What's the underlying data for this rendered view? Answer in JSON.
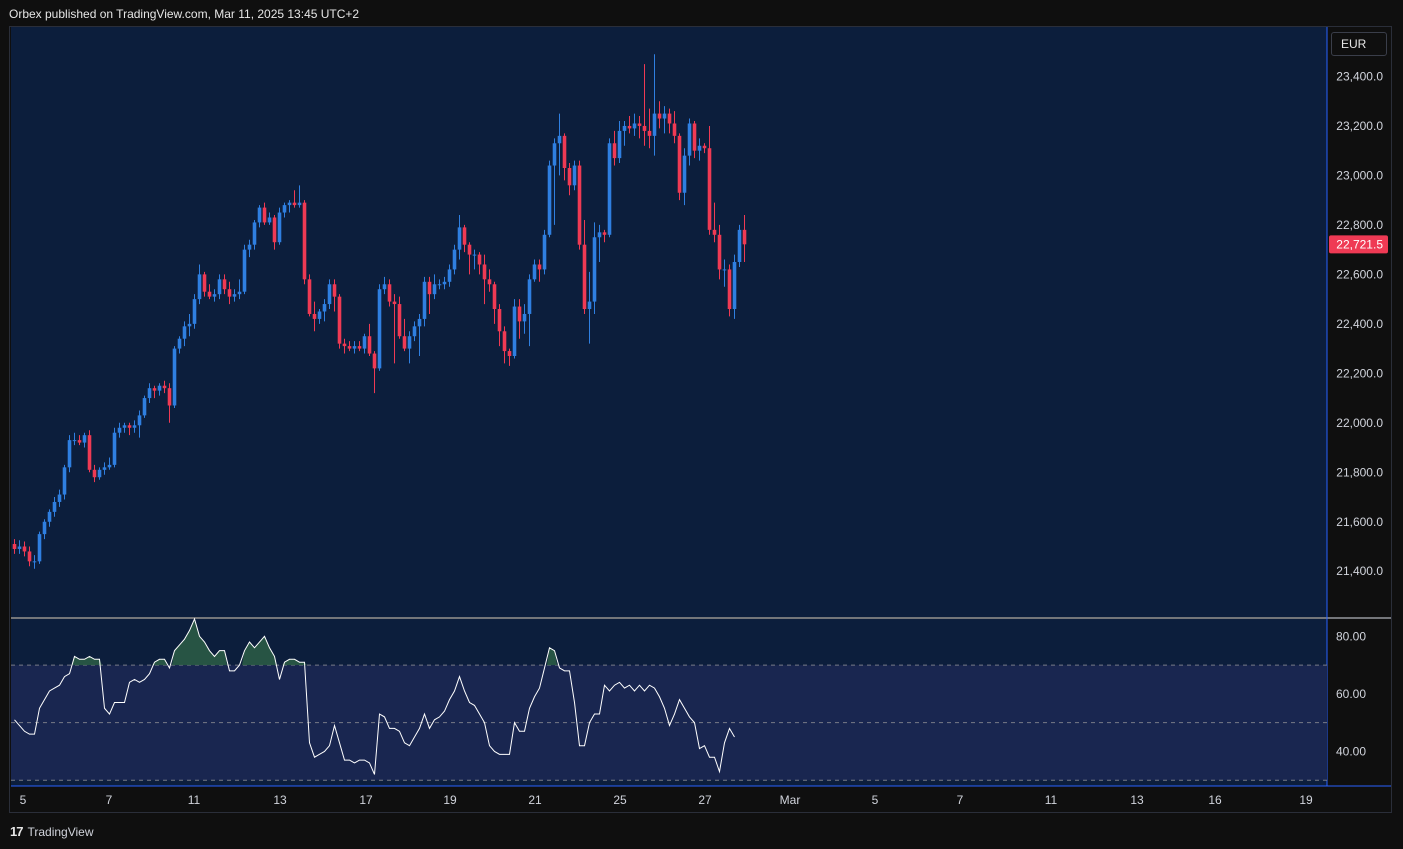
{
  "header": {
    "text": "Orbex published on TradingView.com, Mar 11, 2025 13:45 UTC+2"
  },
  "currency": "EUR",
  "branding": {
    "logo_mark": "17",
    "name": "TradingView"
  },
  "colors": {
    "background": "#0c1e3c",
    "indicator_background": "#192650",
    "up": "#2f7fe0",
    "down": "#ef3a54",
    "rsi_line": "#ffffff",
    "rsi_fill": "#2a5a45",
    "last_price_badge": "#ef3a54"
  },
  "chart_data": [
    {
      "type": "candlestick",
      "timeframe": "4H (approx.)",
      "y_ticks": [
        "21,400.0",
        "21,600.0",
        "21,800.0",
        "22,000.0",
        "22,200.0",
        "22,400.0",
        "22,600.0",
        "22,800.0",
        "23,000.0",
        "23,200.0",
        "23,400.0"
      ],
      "ylim": [
        21215,
        23600
      ],
      "x_ticks": [
        "5",
        "7",
        "11",
        "13",
        "17",
        "19",
        "21",
        "25",
        "27",
        "Mar",
        "5",
        "7",
        "11",
        "13",
        "16",
        "19"
      ],
      "last_price": "22,721.5",
      "candles": [
        [
          21510,
          21530,
          21470,
          21490
        ],
        [
          21490,
          21525,
          21470,
          21500
        ],
        [
          21500,
          21520,
          21460,
          21480
        ],
        [
          21480,
          21500,
          21420,
          21440
        ],
        [
          21440,
          21465,
          21410,
          21440
        ],
        [
          21440,
          21560,
          21430,
          21550
        ],
        [
          21550,
          21610,
          21530,
          21600
        ],
        [
          21600,
          21650,
          21580,
          21640
        ],
        [
          21640,
          21700,
          21620,
          21680
        ],
        [
          21680,
          21730,
          21660,
          21710
        ],
        [
          21710,
          21830,
          21690,
          21820
        ],
        [
          21820,
          21950,
          21800,
          21930
        ],
        [
          21930,
          21960,
          21910,
          21930
        ],
        [
          21930,
          21950,
          21910,
          21920
        ],
        [
          21920,
          21960,
          21900,
          21950
        ],
        [
          21950,
          21970,
          21800,
          21810
        ],
        [
          21810,
          21830,
          21760,
          21780
        ],
        [
          21780,
          21820,
          21770,
          21810
        ],
        [
          21810,
          21840,
          21790,
          21820
        ],
        [
          21820,
          21860,
          21810,
          21830
        ],
        [
          21830,
          21980,
          21820,
          21960
        ],
        [
          21960,
          22000,
          21940,
          21980
        ],
        [
          21980,
          22000,
          21960,
          21990
        ],
        [
          21990,
          22000,
          21950,
          21980
        ],
        [
          21980,
          22010,
          21960,
          21990
        ],
        [
          21990,
          22050,
          21940,
          22030
        ],
        [
          22030,
          22110,
          22020,
          22100
        ],
        [
          22100,
          22160,
          22080,
          22140
        ],
        [
          22140,
          22150,
          22100,
          22130
        ],
        [
          22130,
          22160,
          22110,
          22150
        ],
        [
          22150,
          22170,
          22120,
          22140
        ],
        [
          22140,
          22160,
          22000,
          22070
        ],
        [
          22070,
          22310,
          22060,
          22300
        ],
        [
          22300,
          22350,
          22280,
          22340
        ],
        [
          22340,
          22410,
          22310,
          22390
        ],
        [
          22390,
          22440,
          22350,
          22400
        ],
        [
          22400,
          22520,
          22380,
          22500
        ],
        [
          22500,
          22640,
          22480,
          22600
        ],
        [
          22600,
          22610,
          22510,
          22530
        ],
        [
          22530,
          22560,
          22500,
          22510
        ],
        [
          22510,
          22540,
          22490,
          22520
        ],
        [
          22520,
          22600,
          22500,
          22580
        ],
        [
          22580,
          22600,
          22520,
          22540
        ],
        [
          22540,
          22570,
          22480,
          22510
        ],
        [
          22510,
          22540,
          22490,
          22520
        ],
        [
          22520,
          22580,
          22500,
          22530
        ],
        [
          22530,
          22720,
          22520,
          22700
        ],
        [
          22700,
          22740,
          22670,
          22720
        ],
        [
          22720,
          22820,
          22700,
          22810
        ],
        [
          22810,
          22880,
          22790,
          22870
        ],
        [
          22870,
          22890,
          22800,
          22810
        ],
        [
          22810,
          22850,
          22800,
          22830
        ],
        [
          22830,
          22840,
          22700,
          22730
        ],
        [
          22730,
          22870,
          22720,
          22850
        ],
        [
          22850,
          22890,
          22830,
          22880
        ],
        [
          22880,
          22900,
          22850,
          22890
        ],
        [
          22890,
          22940,
          22870,
          22880
        ],
        [
          22880,
          22960,
          22870,
          22890
        ],
        [
          22890,
          22900,
          22560,
          22580
        ],
        [
          22580,
          22600,
          22430,
          22440
        ],
        [
          22440,
          22490,
          22370,
          22420
        ],
        [
          22420,
          22460,
          22400,
          22450
        ],
        [
          22450,
          22500,
          22410,
          22480
        ],
        [
          22480,
          22580,
          22460,
          22560
        ],
        [
          22560,
          22580,
          22450,
          22510
        ],
        [
          22510,
          22520,
          22300,
          22320
        ],
        [
          22320,
          22340,
          22280,
          22310
        ],
        [
          22310,
          22330,
          22290,
          22300
        ],
        [
          22300,
          22330,
          22280,
          22310
        ],
        [
          22310,
          22330,
          22290,
          22300
        ],
        [
          22300,
          22360,
          22280,
          22350
        ],
        [
          22350,
          22400,
          22270,
          22280
        ],
        [
          22280,
          22290,
          22120,
          22220
        ],
        [
          22220,
          22560,
          22210,
          22540
        ],
        [
          22540,
          22590,
          22520,
          22560
        ],
        [
          22560,
          22580,
          22470,
          22490
        ],
        [
          22490,
          22520,
          22240,
          22480
        ],
        [
          22480,
          22510,
          22340,
          22350
        ],
        [
          22350,
          22420,
          22290,
          22300
        ],
        [
          22300,
          22370,
          22240,
          22350
        ],
        [
          22350,
          22410,
          22330,
          22390
        ],
        [
          22390,
          22440,
          22270,
          22420
        ],
        [
          22420,
          22590,
          22390,
          22570
        ],
        [
          22570,
          22590,
          22440,
          22520
        ],
        [
          22520,
          22600,
          22500,
          22560
        ],
        [
          22560,
          22580,
          22540,
          22560
        ],
        [
          22560,
          22590,
          22540,
          22570
        ],
        [
          22570,
          22640,
          22550,
          22620
        ],
        [
          22620,
          22720,
          22600,
          22700
        ],
        [
          22700,
          22840,
          22660,
          22790
        ],
        [
          22790,
          22800,
          22690,
          22720
        ],
        [
          22720,
          22730,
          22600,
          22680
        ],
        [
          22680,
          22700,
          22620,
          22680
        ],
        [
          22680,
          22690,
          22600,
          22640
        ],
        [
          22640,
          22680,
          22480,
          22580
        ],
        [
          22580,
          22620,
          22530,
          22560
        ],
        [
          22560,
          22570,
          22400,
          22460
        ],
        [
          22460,
          22480,
          22310,
          22370
        ],
        [
          22370,
          22390,
          22240,
          22290
        ],
        [
          22290,
          22300,
          22230,
          22270
        ],
        [
          22270,
          22500,
          22260,
          22470
        ],
        [
          22470,
          22500,
          22340,
          22410
        ],
        [
          22410,
          22480,
          22360,
          22440
        ],
        [
          22440,
          22600,
          22310,
          22580
        ],
        [
          22580,
          22660,
          22570,
          22640
        ],
        [
          22640,
          22660,
          22570,
          22620
        ],
        [
          22620,
          22780,
          22600,
          22760
        ],
        [
          22760,
          23060,
          22750,
          23040
        ],
        [
          23040,
          23150,
          22800,
          23130
        ],
        [
          23130,
          23250,
          23000,
          23160
        ],
        [
          23160,
          23170,
          22980,
          23030
        ],
        [
          23030,
          23050,
          22920,
          22960
        ],
        [
          22960,
          23060,
          22940,
          23040
        ],
        [
          23040,
          23060,
          22700,
          22720
        ],
        [
          22720,
          22820,
          22440,
          22460
        ],
        [
          22460,
          22610,
          22320,
          22490
        ],
        [
          22490,
          22810,
          22440,
          22750
        ],
        [
          22750,
          22800,
          22650,
          22770
        ],
        [
          22770,
          22780,
          22730,
          22760
        ],
        [
          22760,
          23150,
          22750,
          23130
        ],
        [
          23130,
          23180,
          23040,
          23070
        ],
        [
          23070,
          23220,
          23050,
          23180
        ],
        [
          23180,
          23220,
          23120,
          23200
        ],
        [
          23200,
          23240,
          23170,
          23190
        ],
        [
          23190,
          23250,
          23160,
          23210
        ],
        [
          23210,
          23240,
          23150,
          23200
        ],
        [
          23200,
          23450,
          23120,
          23180
        ],
        [
          23180,
          23270,
          23110,
          23160
        ],
        [
          23160,
          23490,
          23080,
          23250
        ],
        [
          23250,
          23300,
          23190,
          23230
        ],
        [
          23230,
          23280,
          23170,
          23250
        ],
        [
          23250,
          23270,
          23170,
          23210
        ],
        [
          23210,
          23260,
          23130,
          23160
        ],
        [
          23160,
          23170,
          22900,
          22930
        ],
        [
          22930,
          23110,
          22880,
          23080
        ],
        [
          23080,
          23230,
          23040,
          23210
        ],
        [
          23210,
          23220,
          23070,
          23100
        ],
        [
          23100,
          23150,
          23060,
          23120
        ],
        [
          23120,
          23130,
          23090,
          23110
        ],
        [
          23110,
          23200,
          22760,
          22780
        ],
        [
          22780,
          22890,
          22730,
          22760
        ],
        [
          22760,
          22800,
          22580,
          22620
        ],
        [
          22620,
          22660,
          22550,
          22620
        ],
        [
          22620,
          22640,
          22430,
          22460
        ],
        [
          22460,
          22680,
          22420,
          22650
        ],
        [
          22650,
          22800,
          22630,
          22780
        ],
        [
          22780,
          22840,
          22650,
          22721.5
        ]
      ]
    },
    {
      "type": "line",
      "name": "RSI",
      "y_ticks": [
        "40.00",
        "60.00",
        "80.00"
      ],
      "ylim": [
        28,
        86
      ],
      "bands": [
        30,
        50,
        70
      ],
      "values": [
        51,
        49,
        47,
        46,
        46,
        55,
        58,
        61,
        62,
        63,
        66,
        67,
        73,
        72,
        72,
        73,
        72,
        72,
        55,
        53,
        57,
        57,
        57,
        64,
        65,
        64,
        65,
        67,
        71,
        72,
        72,
        69,
        75,
        77,
        79,
        82,
        86,
        80,
        78,
        75,
        73,
        75,
        75,
        68,
        68,
        70,
        75,
        78,
        76,
        78,
        80,
        76,
        73,
        65,
        71,
        72,
        72,
        71,
        71,
        43,
        38,
        39,
        40,
        42,
        49,
        43,
        37,
        37,
        36,
        37,
        37,
        36,
        32,
        53,
        52,
        48,
        48,
        47,
        43,
        42,
        45,
        48,
        53,
        48,
        51,
        52,
        54,
        58,
        61,
        66,
        61,
        57,
        56,
        53,
        50,
        42,
        40,
        39,
        39,
        39,
        50,
        47,
        47,
        55,
        59,
        62,
        69,
        76,
        75,
        69,
        68,
        68,
        57,
        42,
        42,
        50,
        53,
        53,
        63,
        61,
        63,
        64,
        62,
        63,
        61,
        63,
        61,
        63,
        62,
        59,
        55,
        49,
        53,
        58,
        55,
        52,
        50,
        41,
        42,
        38,
        38,
        33,
        43,
        48,
        45
      ]
    }
  ],
  "footer": {
    "x_ticks": [
      "5",
      "7",
      "11",
      "13",
      "17",
      "19",
      "21",
      "25",
      "27",
      "Mar",
      "5",
      "7",
      "11",
      "13",
      "16",
      "19"
    ]
  }
}
